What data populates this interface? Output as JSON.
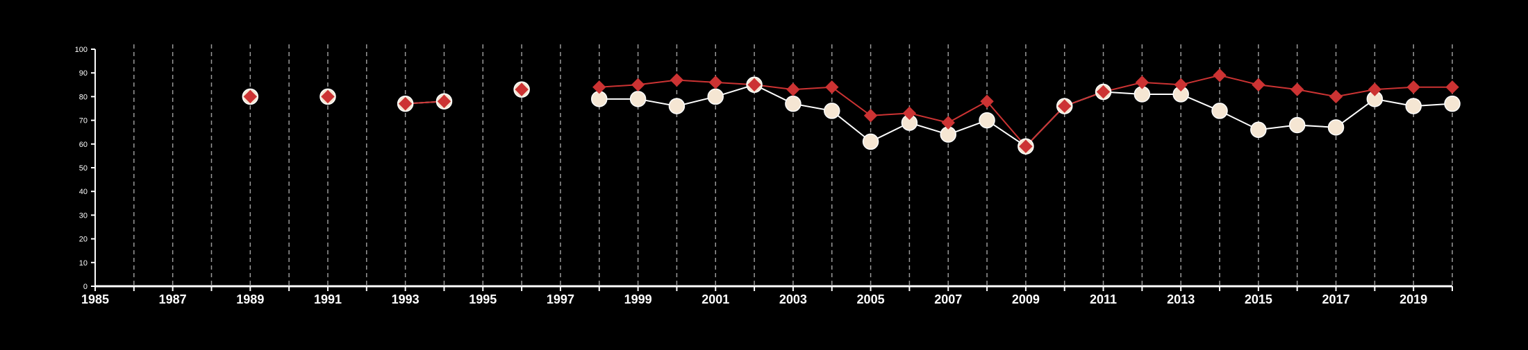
{
  "chart_data": {
    "type": "line",
    "title": "",
    "xlabel": "",
    "ylabel": "",
    "xlim": [
      1985,
      2020
    ],
    "ylim": [
      0,
      100
    ],
    "xticks_labeled": [
      1985,
      1987,
      1989,
      1991,
      1993,
      1995,
      1997,
      1999,
      2001,
      2003,
      2005,
      2007,
      2009,
      2011,
      2013,
      2015,
      2017,
      2019
    ],
    "xticks_all": [
      1985,
      1986,
      1987,
      1988,
      1989,
      1990,
      1991,
      1992,
      1993,
      1994,
      1995,
      1996,
      1997,
      1998,
      1999,
      2000,
      2001,
      2002,
      2003,
      2004,
      2005,
      2006,
      2007,
      2008,
      2009,
      2010,
      2011,
      2012,
      2013,
      2014,
      2015,
      2016,
      2017,
      2018,
      2019,
      2020
    ],
    "yticks": [
      0,
      10,
      20,
      30,
      40,
      50,
      60,
      70,
      80,
      90,
      100
    ],
    "grid": {
      "vertical": true,
      "horizontal": false,
      "style": "dashed"
    },
    "legend": "none",
    "colors": {
      "background": "#000000",
      "axis": "#ffffff",
      "grid": "#9a9a9a",
      "series_red": "#cc3333",
      "series_cream": "#f5e6d3",
      "series_cream_line": "#ffffff"
    },
    "series": [
      {
        "marker": "diamond",
        "color": "#cc3333",
        "points": [
          [
            1989,
            80
          ],
          [
            1991,
            80
          ],
          [
            1993,
            77
          ],
          [
            1994,
            78
          ],
          [
            1996,
            83
          ],
          [
            1998,
            84
          ],
          [
            1999,
            85
          ],
          [
            2000,
            87
          ],
          [
            2001,
            86
          ],
          [
            2002,
            85
          ],
          [
            2003,
            83
          ],
          [
            2004,
            84
          ],
          [
            2005,
            72
          ],
          [
            2006,
            73
          ],
          [
            2007,
            69
          ],
          [
            2008,
            78
          ],
          [
            2009,
            59
          ],
          [
            2010,
            76
          ],
          [
            2011,
            82
          ],
          [
            2012,
            86
          ],
          [
            2013,
            85
          ],
          [
            2014,
            89
          ],
          [
            2015,
            85
          ],
          [
            2016,
            83
          ],
          [
            2017,
            80
          ],
          [
            2018,
            83
          ],
          [
            2019,
            84
          ],
          [
            2020,
            84
          ]
        ]
      },
      {
        "marker": "circle",
        "color": "#f5e6d3",
        "points": [
          [
            1989,
            80
          ],
          [
            1991,
            80
          ],
          [
            1993,
            77
          ],
          [
            1994,
            78
          ],
          [
            1996,
            83
          ],
          [
            1998,
            79
          ],
          [
            1999,
            79
          ],
          [
            2000,
            76
          ],
          [
            2001,
            80
          ],
          [
            2002,
            85
          ],
          [
            2003,
            77
          ],
          [
            2004,
            74
          ],
          [
            2005,
            61
          ],
          [
            2006,
            69
          ],
          [
            2007,
            64
          ],
          [
            2008,
            70
          ],
          [
            2009,
            59
          ],
          [
            2010,
            76
          ],
          [
            2011,
            82
          ],
          [
            2012,
            81
          ],
          [
            2013,
            81
          ],
          [
            2014,
            74
          ],
          [
            2015,
            66
          ],
          [
            2016,
            68
          ],
          [
            2017,
            67
          ],
          [
            2018,
            79
          ],
          [
            2019,
            76
          ],
          [
            2020,
            77
          ]
        ]
      }
    ]
  }
}
